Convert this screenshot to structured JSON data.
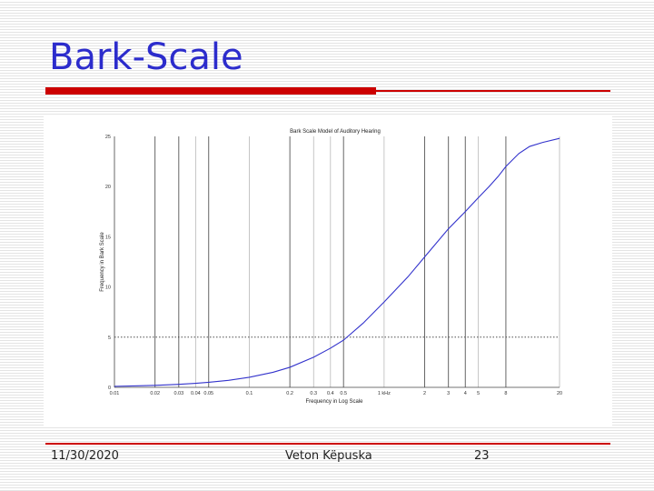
{
  "slide": {
    "title": "Bark-Scale",
    "footer_date": "11/30/2020",
    "footer_author": "Veton Këpuska",
    "footer_page": "23"
  },
  "colors": {
    "title": "#2c2ccc",
    "accent": "#cc0000",
    "curve": "#3333cc"
  },
  "chart_data": {
    "type": "line",
    "title": "Bark Scale Model of Auditory Hearing",
    "xlabel": "Frequency in Log Scale",
    "ylabel": "Frequency in Bark Scale",
    "x_scale": "log",
    "xlim": [
      0.01,
      20
    ],
    "ylim": [
      0,
      25
    ],
    "x_ticks": [
      0.01,
      0.02,
      0.03,
      0.04,
      0.05,
      0.1,
      0.2,
      0.3,
      0.4,
      0.5,
      1,
      2,
      3,
      4,
      5,
      8,
      20
    ],
    "x_tick_labels": [
      "0.01",
      "0.02",
      "0.03",
      "0.04",
      "0.05",
      "0.1",
      "0.2",
      "0.3",
      "0.4",
      "0.5",
      "1 kHz",
      "2",
      "3",
      "4",
      "5",
      "8",
      "20"
    ],
    "y_ticks": [
      0,
      5,
      10,
      15,
      20,
      25
    ],
    "y_tick_labels": [
      "0",
      "5",
      "10",
      "15",
      "20",
      "25"
    ],
    "vertical_lines_dark": [
      0.02,
      0.03,
      0.05,
      0.2,
      0.5,
      2,
      3,
      4,
      8
    ],
    "vertical_lines_light": [
      0.04,
      0.1,
      0.3,
      0.4,
      1,
      5,
      20
    ],
    "reference_line_y": 5,
    "series": [
      {
        "x": [
          0.01,
          0.015,
          0.02,
          0.03,
          0.04,
          0.05,
          0.07,
          0.1,
          0.15,
          0.2,
          0.3,
          0.4,
          0.5,
          0.7,
          1,
          1.5,
          2,
          3,
          4,
          5,
          6,
          7,
          8,
          10,
          12,
          15,
          20
        ],
        "y": [
          0.1,
          0.15,
          0.2,
          0.3,
          0.4,
          0.5,
          0.7,
          1.0,
          1.5,
          2.0,
          3.0,
          3.9,
          4.7,
          6.4,
          8.5,
          11.0,
          13.0,
          15.8,
          17.5,
          18.9,
          20.0,
          21.0,
          22.0,
          23.3,
          24.0,
          24.4,
          24.8
        ]
      }
    ]
  }
}
